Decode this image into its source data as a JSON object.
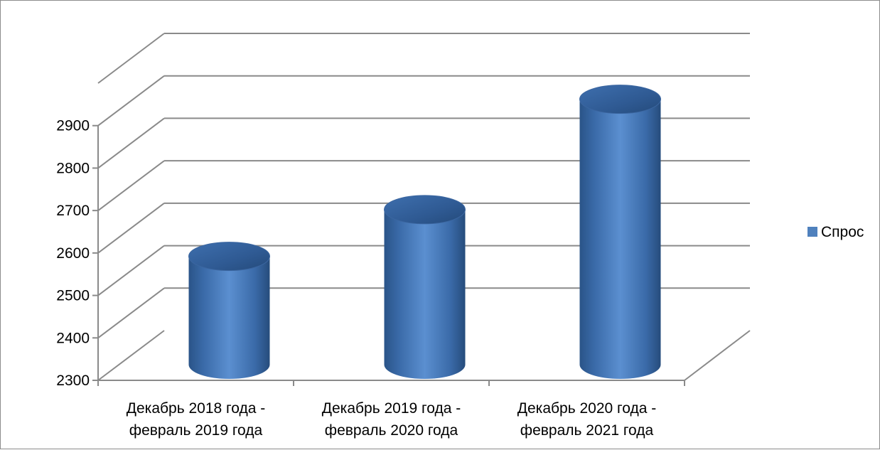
{
  "chart_data": {
    "type": "bar",
    "style": "3d-cylinder",
    "categories": [
      "Декабрь 2018 года - февраль 2019 года",
      "Декабрь 2019 года - февраль 2020 года",
      "Декабрь 2020 года - февраль 2021 года"
    ],
    "category_lines": [
      [
        "Декабрь 2018 года -",
        "февраль 2019 года"
      ],
      [
        "Декабрь 2019 года -",
        "февраль 2020 года"
      ],
      [
        "Декабрь 2020 года -",
        "февраль 2021 года"
      ]
    ],
    "series": [
      {
        "name": "Спрос",
        "values": [
          2505,
          2615,
          2875
        ],
        "color": "#4F81BD"
      }
    ],
    "ylim": [
      2300,
      3000
    ],
    "yticks": [
      2300,
      2400,
      2500,
      2600,
      2700,
      2800,
      2900
    ],
    "grid": true,
    "legend": "right",
    "title": "",
    "xlabel": "",
    "ylabel": ""
  }
}
